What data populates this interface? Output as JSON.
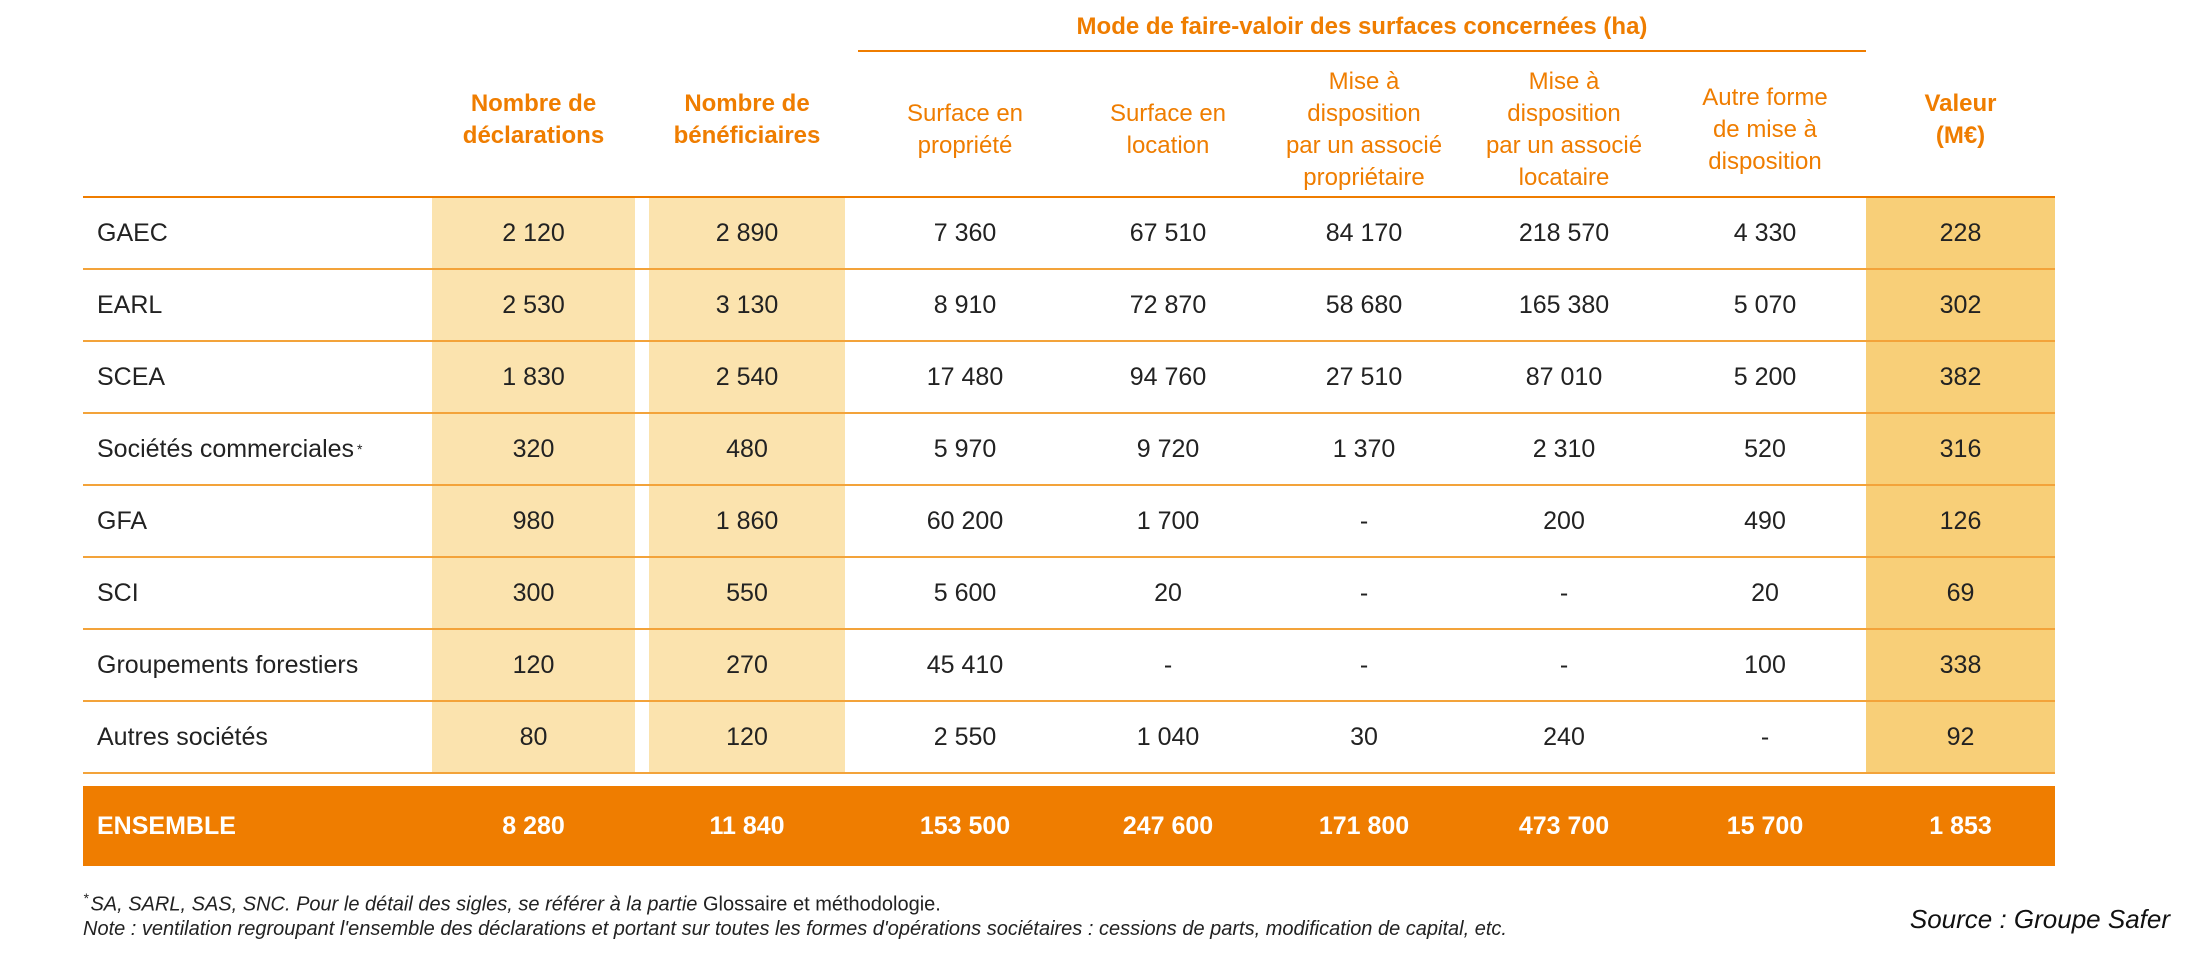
{
  "header": {
    "group_title": "Mode de faire-valoir des surfaces concernées (ha)",
    "columns": {
      "declarations": [
        "Nombre de",
        "déclarations"
      ],
      "beneficiaires": [
        "Nombre de",
        "bénéficiaires"
      ],
      "propriete": [
        "Surface en",
        "propriété"
      ],
      "location": [
        "Surface en",
        "location"
      ],
      "associe_proprietaire": [
        "Mise à",
        "disposition",
        "par un associé",
        "propriétaire"
      ],
      "associe_locataire": [
        "Mise à",
        "disposition",
        "par un associé",
        "locataire"
      ],
      "autre_forme": [
        "Autre forme",
        "de mise à",
        "disposition"
      ],
      "valeur": [
        "Valeur",
        "(M€)"
      ]
    }
  },
  "rows": [
    {
      "label": "GAEC",
      "sup": "",
      "values": [
        "2 120",
        "2 890",
        "7 360",
        "67 510",
        "84 170",
        "218 570",
        "4 330",
        "228"
      ]
    },
    {
      "label": "EARL",
      "sup": "",
      "values": [
        "2 530",
        "3 130",
        "8 910",
        "72 870",
        "58 680",
        "165 380",
        "5 070",
        "302"
      ]
    },
    {
      "label": "SCEA",
      "sup": "",
      "values": [
        "1 830",
        "2 540",
        "17 480",
        "94 760",
        "27 510",
        "87 010",
        "5 200",
        "382"
      ]
    },
    {
      "label": "Sociétés commerciales",
      "sup": "*",
      "values": [
        "320",
        "480",
        "5 970",
        "9 720",
        "1 370",
        "2 310",
        "520",
        "316"
      ]
    },
    {
      "label": "GFA",
      "sup": "",
      "values": [
        "980",
        "1 860",
        "60 200",
        "1 700",
        "-",
        "200",
        "490",
        "126"
      ]
    },
    {
      "label": "SCI",
      "sup": "",
      "values": [
        "300",
        "550",
        "5 600",
        "20",
        "-",
        "-",
        "20",
        "69"
      ]
    },
    {
      "label": "Groupements forestiers",
      "sup": "",
      "values": [
        "120",
        "270",
        "45 410",
        "-",
        "-",
        "-",
        "100",
        "338"
      ]
    },
    {
      "label": "Autres sociétés",
      "sup": "",
      "values": [
        "80",
        "120",
        "2 550",
        "1 040",
        "30",
        "240",
        "-",
        "92"
      ]
    }
  ],
  "total": {
    "label": "ENSEMBLE",
    "values": [
      "8 280",
      "11 840",
      "153 500",
      "247 600",
      "171 800",
      "473 700",
      "15 700",
      "1 853"
    ]
  },
  "footnotes": {
    "asterisk": "*",
    "line1_italic": "SA, SARL, SAS, SNC. Pour le détail des sigles, se référer à la partie ",
    "line1_roman": "Glossaire et méthodologie.",
    "line2": "Note : ventilation regroupant l'ensemble des déclarations et portant sur toutes les formes d'opérations sociétaires : cessions de parts, modification de capital, etc."
  },
  "source": "Source : Groupe Safer",
  "colors": {
    "accent": "#ef7d00",
    "shade_light": "#fbe3ae",
    "shade_value": "#f8cf78",
    "row_separator": "#f3a33a"
  }
}
